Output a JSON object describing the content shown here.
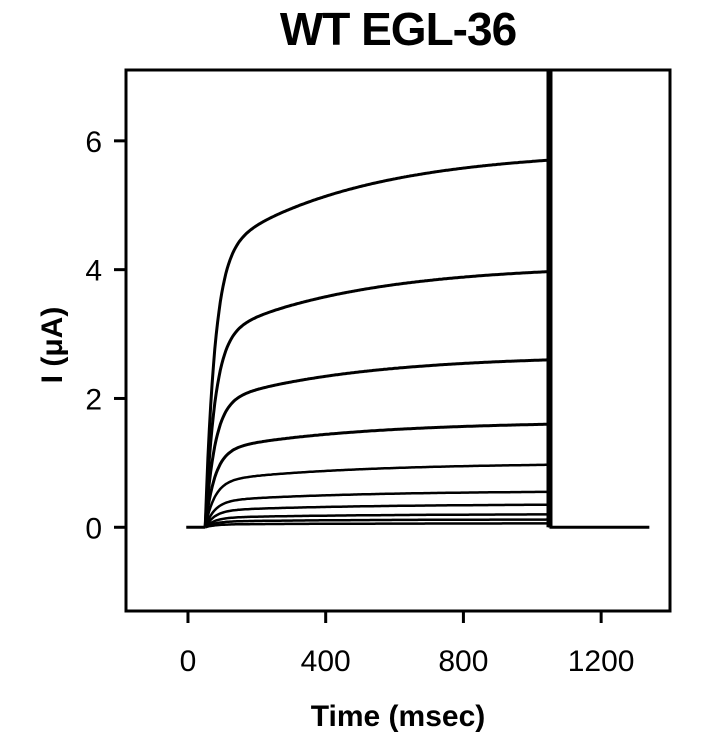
{
  "chart_data": {
    "type": "line",
    "title": "WT EGL-36",
    "xlabel": "Time (msec)",
    "ylabel": "I (μA)",
    "xlim": [
      -180,
      1400
    ],
    "ylim": [
      -1.3,
      7.1
    ],
    "xticks": [
      0,
      400,
      800,
      1200
    ],
    "yticks": [
      0,
      2,
      4,
      6
    ],
    "x_tick_labels": [
      "0",
      "400",
      "800",
      "1200"
    ],
    "y_tick_labels": [
      "0",
      "2",
      "4",
      "6"
    ],
    "grid": false,
    "legend": "none",
    "pulse": {
      "start_ms": 50,
      "end_ms": 1050,
      "trace_end_ms": 1340
    },
    "traces": [
      {
        "steady_uA": 5.7,
        "peak_at_end": true
      },
      {
        "steady_uA": 3.97,
        "peak_at_end": true
      },
      {
        "steady_uA": 2.6,
        "peak_at_end": true
      },
      {
        "steady_uA": 1.6,
        "peak_at_end": true
      },
      {
        "steady_uA": 0.97,
        "peak_at_end": true
      },
      {
        "steady_uA": 0.55,
        "peak_at_end": true
      },
      {
        "steady_uA": 0.35,
        "peak_at_end": true
      },
      {
        "steady_uA": 0.2,
        "peak_at_end": true
      },
      {
        "steady_uA": 0.12,
        "peak_at_end": true
      },
      {
        "steady_uA": 0.06,
        "peak_at_end": true
      }
    ],
    "line_color": "#000000"
  }
}
